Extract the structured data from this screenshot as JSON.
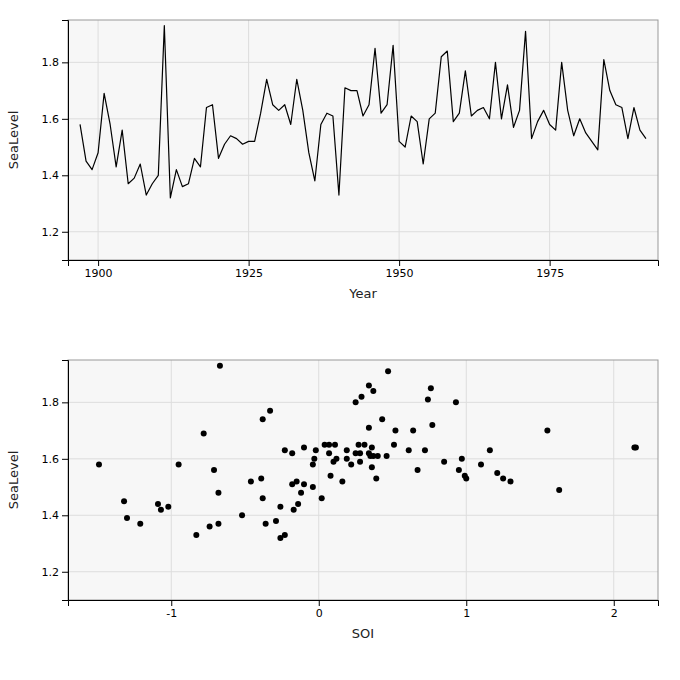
{
  "chart_data": [
    {
      "type": "line",
      "xlabel": "Year",
      "ylabel": "SeaLevel",
      "x": [
        1897,
        1898,
        1899,
        1900,
        1901,
        1902,
        1903,
        1904,
        1905,
        1906,
        1907,
        1908,
        1909,
        1910,
        1911,
        1912,
        1913,
        1914,
        1915,
        1916,
        1917,
        1918,
        1919,
        1920,
        1921,
        1922,
        1923,
        1924,
        1925,
        1926,
        1927,
        1928,
        1929,
        1930,
        1931,
        1932,
        1933,
        1934,
        1935,
        1936,
        1937,
        1938,
        1939,
        1940,
        1941,
        1942,
        1943,
        1944,
        1945,
        1946,
        1947,
        1948,
        1949,
        1950,
        1951,
        1952,
        1953,
        1954,
        1955,
        1956,
        1957,
        1958,
        1959,
        1960,
        1961,
        1962,
        1963,
        1964,
        1965,
        1966,
        1967,
        1968,
        1969,
        1970,
        1971,
        1972,
        1973,
        1974,
        1975,
        1976,
        1977,
        1978,
        1979,
        1980,
        1981,
        1982,
        1983,
        1984,
        1985,
        1986,
        1987,
        1988,
        1989,
        1990,
        1991
      ],
      "series": [
        {
          "color": "#000000",
          "values": [
            1.58,
            1.45,
            1.42,
            1.48,
            1.69,
            1.58,
            1.43,
            1.56,
            1.37,
            1.39,
            1.44,
            1.33,
            1.37,
            1.4,
            1.93,
            1.32,
            1.42,
            1.36,
            1.37,
            1.46,
            1.43,
            1.64,
            1.65,
            1.46,
            1.51,
            1.54,
            1.53,
            1.51,
            1.52,
            1.52,
            1.62,
            1.74,
            1.65,
            1.63,
            1.65,
            1.58,
            1.74,
            1.63,
            1.48,
            1.38,
            1.58,
            1.62,
            1.61,
            1.33,
            1.71,
            1.7,
            1.7,
            1.61,
            1.65,
            1.85,
            1.62,
            1.65,
            1.86,
            1.52,
            1.5,
            1.61,
            1.59,
            1.44,
            1.6,
            1.62,
            1.82,
            1.84,
            1.59,
            1.62,
            1.77,
            1.61,
            1.63,
            1.64,
            1.6,
            1.8,
            1.6,
            1.72,
            1.57,
            1.63,
            1.91,
            1.53,
            1.59,
            1.63,
            1.58,
            1.56,
            1.8,
            1.63,
            1.54,
            1.6,
            1.55,
            1.52,
            1.49,
            1.81,
            1.7,
            1.65,
            1.64,
            1.53,
            1.64,
            1.56,
            1.53
          ]
        }
      ],
      "xlim": [
        1895,
        1993
      ],
      "ylim": [
        1.1,
        1.95
      ],
      "xticks": [
        1900,
        1925,
        1950,
        1975
      ],
      "yticks": [
        1.2,
        1.4,
        1.6,
        1.8
      ],
      "grid": true
    },
    {
      "type": "scatter",
      "xlabel": "SOI",
      "ylabel": "SeaLevel",
      "x": [
        -1.49,
        -1.32,
        -1.07,
        -0.68,
        -0.78,
        -0.95,
        -1.02,
        -0.71,
        -1.21,
        -1.3,
        -1.09,
        -0.83,
        -0.68,
        -0.52,
        -0.67,
        -0.26,
        -0.17,
        -0.74,
        -0.36,
        0.02,
        -0.26,
        -0.1,
        0.04,
        -0.38,
        -0.1,
        0.08,
        -0.39,
        -0.18,
        -0.15,
        -0.46,
        0.07,
        -0.38,
        0.31,
        -0.23,
        0.07,
        -0.04,
        0.43,
        0.19,
        -0.12,
        -0.29,
        0.22,
        -0.18,
        0.37,
        -0.23,
        0.34,
        0.64,
        0.52,
        0.46,
        0.51,
        0.76,
        0.28,
        0.11,
        0.34,
        0.16,
        -0.04,
        0.35,
        0.1,
        -0.14,
        0.12,
        0.34,
        0.29,
        0.37,
        0.28,
        0.25,
        -0.33,
        0.4,
        -0.02,
        0.36,
        0.19,
        0.25,
        -0.03,
        0.77,
        0.36,
        0.61,
        0.47,
        1.25,
        0.85,
        0.72,
        1.1,
        0.95,
        0.93,
        1.16,
        0.99,
        0.97,
        1.21,
        1.3,
        1.63,
        0.74,
        1.55,
        0.27,
        2.14,
        0.39,
        2.15,
        0.67,
        1.0
      ],
      "series": [
        {
          "color": "#000000",
          "values": [
            1.58,
            1.45,
            1.42,
            1.48,
            1.69,
            1.58,
            1.43,
            1.56,
            1.37,
            1.39,
            1.44,
            1.33,
            1.37,
            1.4,
            1.93,
            1.32,
            1.42,
            1.36,
            1.37,
            1.46,
            1.43,
            1.64,
            1.65,
            1.46,
            1.51,
            1.54,
            1.53,
            1.51,
            1.52,
            1.52,
            1.62,
            1.74,
            1.65,
            1.63,
            1.65,
            1.58,
            1.74,
            1.63,
            1.48,
            1.38,
            1.58,
            1.62,
            1.61,
            1.33,
            1.71,
            1.7,
            1.7,
            1.61,
            1.65,
            1.85,
            1.62,
            1.65,
            1.86,
            1.52,
            1.5,
            1.61,
            1.59,
            1.44,
            1.6,
            1.62,
            1.82,
            1.84,
            1.59,
            1.62,
            1.77,
            1.61,
            1.63,
            1.64,
            1.6,
            1.8,
            1.6,
            1.72,
            1.57,
            1.63,
            1.91,
            1.53,
            1.59,
            1.63,
            1.58,
            1.56,
            1.8,
            1.63,
            1.54,
            1.6,
            1.55,
            1.52,
            1.49,
            1.81,
            1.7,
            1.65,
            1.64,
            1.53,
            1.64,
            1.56,
            1.53
          ]
        }
      ],
      "xlim": [
        -1.7,
        2.3
      ],
      "ylim": [
        1.1,
        1.95
      ],
      "xticks": [
        -1,
        0,
        1,
        2
      ],
      "yticks": [
        1.2,
        1.4,
        1.6,
        1.8
      ],
      "grid": true
    }
  ]
}
